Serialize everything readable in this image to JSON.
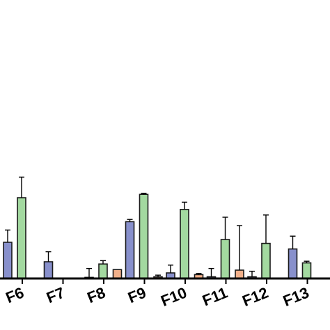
{
  "chart_data": {
    "type": "bar",
    "categories": [
      "F6",
      "F7",
      "F8",
      "F9",
      "F10",
      "F11",
      "F12",
      "F13"
    ],
    "series": [
      {
        "color": "#f2b08a",
        "values": [
          0.4,
          0.0,
          0.0,
          1.6,
          0.3,
          0.7,
          1.5,
          0.0
        ],
        "errors": [
          0.4,
          0.0,
          0.0,
          0.0,
          0.3,
          0.2,
          8.0,
          0.0
        ]
      },
      {
        "color": "#8890cc",
        "values": [
          6.5,
          3.0,
          0.2,
          10.2,
          1.0,
          0.3,
          0.3,
          5.3
        ],
        "errors": [
          2.2,
          1.8,
          1.6,
          0.4,
          1.4,
          1.5,
          1.0,
          2.3
        ]
      },
      {
        "color": "#a3d9a0",
        "values": [
          14.5,
          0.0,
          2.6,
          15.1,
          12.4,
          7.0,
          6.3,
          2.8
        ],
        "errors": [
          3.7,
          0.0,
          0.6,
          0.2,
          1.3,
          4.0,
          5.1,
          0.3
        ]
      }
    ],
    "ylim": [
      0,
      40
    ],
    "grid": false
  }
}
